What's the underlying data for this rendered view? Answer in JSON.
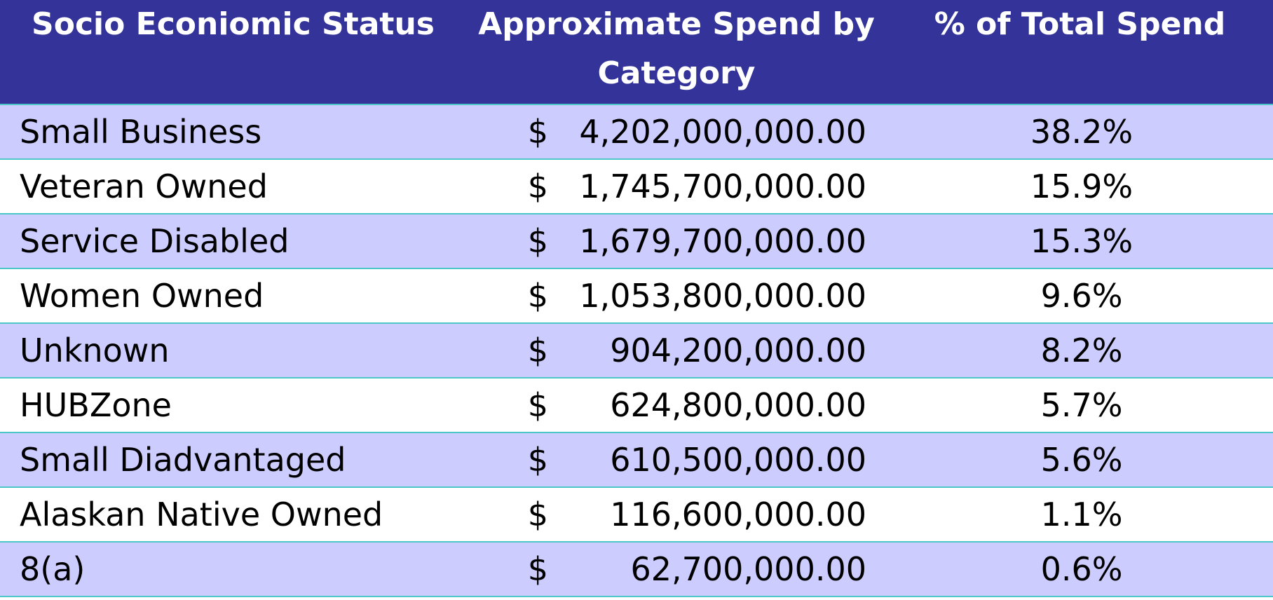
{
  "table": {
    "headers": {
      "status": "Socio Econiomic Status",
      "spend_line1": "Approximate Spend by",
      "spend_line2": "Category",
      "percent": "% of Total Spend"
    },
    "rows": [
      {
        "status": "Small Business",
        "currency": "$",
        "amount": "4,202,000,000.00",
        "percent": "38.2%"
      },
      {
        "status": "Veteran Owned",
        "currency": "$",
        "amount": "1,745,700,000.00",
        "percent": "15.9%"
      },
      {
        "status": "Service Disabled",
        "currency": "$",
        "amount": "1,679,700,000.00",
        "percent": "15.3%"
      },
      {
        "status": "Women Owned",
        "currency": "$",
        "amount": "1,053,800,000.00",
        "percent": "9.6%"
      },
      {
        "status": "Unknown",
        "currency": "$",
        "amount": "904,200,000.00",
        "percent": "8.2%"
      },
      {
        "status": "HUBZone",
        "currency": "$",
        "amount": "624,800,000.00",
        "percent": "5.7%"
      },
      {
        "status": "Small Diadvantaged",
        "currency": "$",
        "amount": "610,500,000.00",
        "percent": "5.6%"
      },
      {
        "status": "Alaskan Native Owned",
        "currency": "$",
        "amount": "116,600,000.00",
        "percent": "1.1%"
      },
      {
        "status": "8(a)",
        "currency": "$",
        "amount": "62,700,000.00",
        "percent": "0.6%"
      }
    ]
  },
  "colors": {
    "header_bg": "#333399",
    "row_shaded": "#ccccff",
    "row_plain": "#ffffff",
    "grid_line": "#4cc7c7"
  }
}
